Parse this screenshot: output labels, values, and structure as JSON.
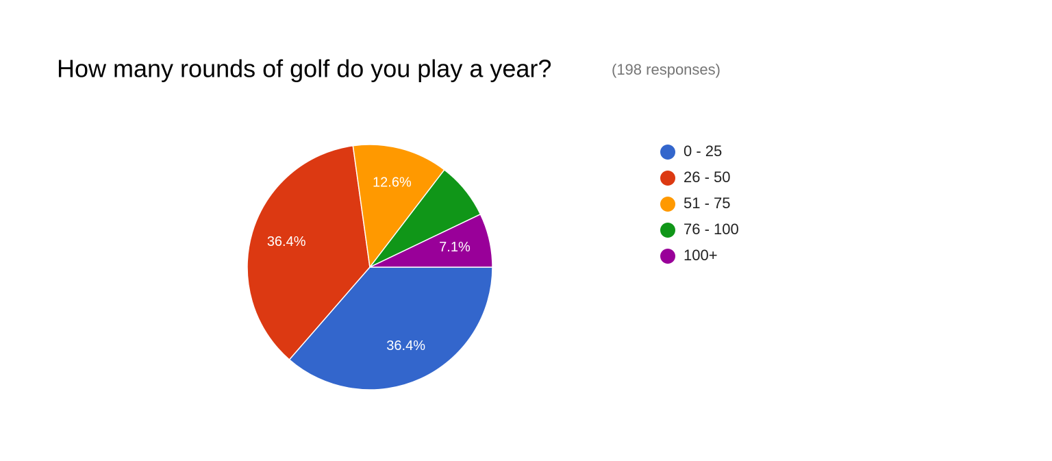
{
  "chart_data": {
    "type": "pie",
    "title": "How many rounds of golf do you play a year?",
    "subtitle": "(198 responses)",
    "categories": [
      "0 - 25",
      "26 - 50",
      "51 - 75",
      "76 - 100",
      "100+"
    ],
    "values": [
      36.4,
      36.4,
      12.6,
      7.5,
      7.1
    ],
    "value_labels": [
      "36.4%",
      "36.4%",
      "12.6%",
      null,
      "7.1%"
    ],
    "colors": [
      "#3366cc",
      "#dc3912",
      "#ff9900",
      "#109618",
      "#990099"
    ],
    "legend": "right"
  }
}
